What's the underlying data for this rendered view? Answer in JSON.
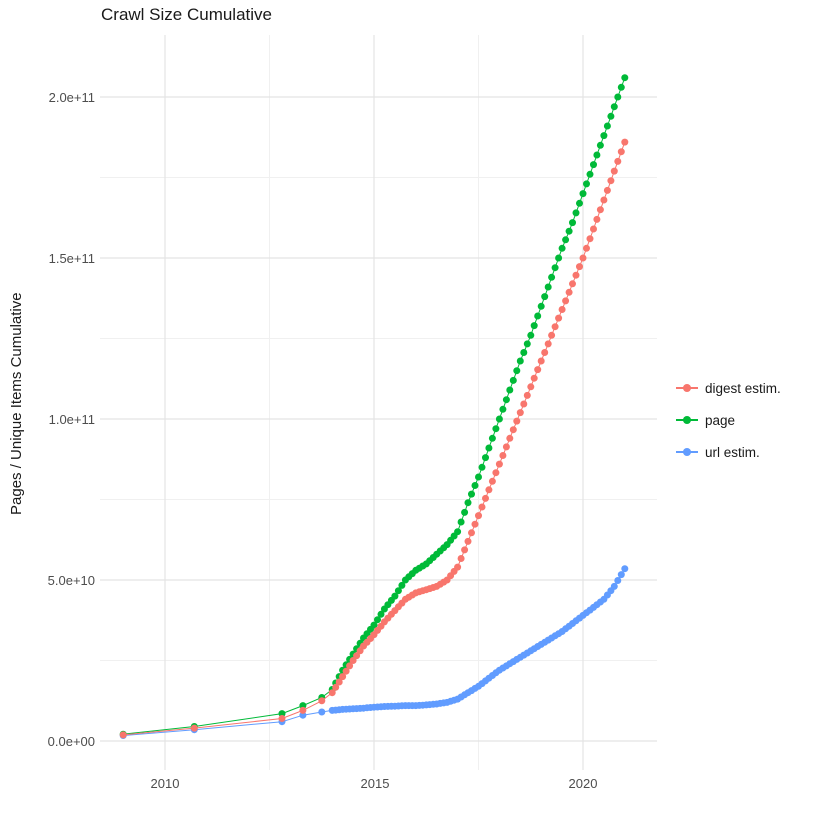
{
  "chart_data": {
    "type": "scatter",
    "title": "Crawl Size Cumulative",
    "xlabel": "",
    "ylabel": "Pages / Unique Items Cumulative",
    "grid": true,
    "legend_position": "right",
    "xlim": [
      2008.45,
      2021.77
    ],
    "ylim": [
      -9000000000.0,
      219000000000.0
    ],
    "x_ticks": {
      "labels": [
        "2010",
        "2015",
        "2020"
      ],
      "values": [
        2010,
        2015,
        2020
      ]
    },
    "y_ticks": {
      "labels": [
        "0.0e+00",
        "5.0e+10",
        "1.0e+11",
        "1.5e+11",
        "2.0e+11"
      ],
      "values": [
        0,
        50000000000.0,
        100000000000.0,
        150000000000.0,
        200000000000.0
      ]
    },
    "x_minor": [
      2012.5,
      2017.5
    ],
    "y_minor": [
      25000000000.0,
      75000000000.0,
      125000000000.0,
      175000000000.0
    ],
    "series": [
      {
        "name": "digest estim.",
        "color": "#F8766D",
        "points": [
          [
            2009.0,
            1900000000.0
          ],
          [
            2010.7,
            4000000000.0
          ],
          [
            2012.8,
            7000000000.0
          ],
          [
            2013.3,
            9500000000.0
          ],
          [
            2013.75,
            12500000000.0
          ],
          [
            2014.0,
            15000000000.0
          ],
          [
            2014.25,
            20000000000.0
          ],
          [
            2014.5,
            25000000000.0
          ],
          [
            2014.75,
            29500000000.0
          ],
          [
            2015.0,
            33000000000.0
          ],
          [
            2015.25,
            37000000000.0
          ],
          [
            2015.5,
            40500000000.0
          ],
          [
            2015.75,
            44000000000.0
          ],
          [
            2016.0,
            46000000000.0
          ],
          [
            2016.25,
            47000000000.0
          ],
          [
            2016.5,
            48000000000.0
          ],
          [
            2016.75,
            50000000000.0
          ],
          [
            2017.0,
            54000000000.0
          ],
          [
            2017.25,
            62000000000.0
          ],
          [
            2017.5,
            70000000000.0
          ],
          [
            2017.75,
            78000000000.0
          ],
          [
            2018.0,
            86000000000.0
          ],
          [
            2018.25,
            94000000000.0
          ],
          [
            2018.5,
            102000000000.0
          ],
          [
            2018.75,
            110000000000.0
          ],
          [
            2019.0,
            118000000000.0
          ],
          [
            2019.25,
            126000000000.0
          ],
          [
            2019.5,
            134000000000.0
          ],
          [
            2019.75,
            142000000000.0
          ],
          [
            2020.0,
            150000000000.0
          ],
          [
            2020.25,
            159000000000.0
          ],
          [
            2020.5,
            168000000000.0
          ],
          [
            2020.75,
            177000000000.0
          ],
          [
            2021.0,
            186000000000.0
          ]
        ]
      },
      {
        "name": "page",
        "color": "#00BA38",
        "points": [
          [
            2009.0,
            2100000000.0
          ],
          [
            2010.7,
            4500000000.0
          ],
          [
            2012.8,
            8500000000.0
          ],
          [
            2013.3,
            11000000000.0
          ],
          [
            2013.75,
            13500000000.0
          ],
          [
            2014.0,
            16000000000.0
          ],
          [
            2014.25,
            22000000000.0
          ],
          [
            2014.5,
            27000000000.0
          ],
          [
            2014.75,
            32000000000.0
          ],
          [
            2015.0,
            36000000000.0
          ],
          [
            2015.25,
            41000000000.0
          ],
          [
            2015.5,
            45000000000.0
          ],
          [
            2015.75,
            50000000000.0
          ],
          [
            2016.0,
            53000000000.0
          ],
          [
            2016.25,
            55000000000.0
          ],
          [
            2016.5,
            58000000000.0
          ],
          [
            2016.75,
            61000000000.0
          ],
          [
            2017.0,
            65000000000.0
          ],
          [
            2017.25,
            74000000000.0
          ],
          [
            2017.5,
            82000000000.0
          ],
          [
            2017.75,
            91000000000.0
          ],
          [
            2018.0,
            100000000000.0
          ],
          [
            2018.25,
            109000000000.0
          ],
          [
            2018.5,
            118000000000.0
          ],
          [
            2018.75,
            126000000000.0
          ],
          [
            2019.0,
            135000000000.0
          ],
          [
            2019.25,
            144000000000.0
          ],
          [
            2019.5,
            153000000000.0
          ],
          [
            2019.75,
            161000000000.0
          ],
          [
            2020.0,
            170000000000.0
          ],
          [
            2020.25,
            179000000000.0
          ],
          [
            2020.5,
            188000000000.0
          ],
          [
            2020.75,
            197000000000.0
          ],
          [
            2021.0,
            206000000000.0
          ]
        ]
      },
      {
        "name": "url estim.",
        "color": "#619CFF",
        "points": [
          [
            2009.0,
            1700000000.0
          ],
          [
            2010.7,
            3500000000.0
          ],
          [
            2012.8,
            6000000000.0
          ],
          [
            2013.3,
            8000000000.0
          ],
          [
            2013.75,
            9000000000.0
          ],
          [
            2014.0,
            9500000000.0
          ],
          [
            2014.25,
            9800000000.0
          ],
          [
            2014.5,
            10000000000.0
          ],
          [
            2014.75,
            10200000000.0
          ],
          [
            2015.0,
            10500000000.0
          ],
          [
            2015.25,
            10700000000.0
          ],
          [
            2015.5,
            10800000000.0
          ],
          [
            2015.75,
            11000000000.0
          ],
          [
            2016.0,
            11000000000.0
          ],
          [
            2016.25,
            11200000000.0
          ],
          [
            2016.5,
            11500000000.0
          ],
          [
            2016.75,
            12000000000.0
          ],
          [
            2017.0,
            13000000000.0
          ],
          [
            2017.25,
            15000000000.0
          ],
          [
            2017.5,
            17000000000.0
          ],
          [
            2017.75,
            19500000000.0
          ],
          [
            2018.0,
            22000000000.0
          ],
          [
            2018.25,
            24000000000.0
          ],
          [
            2018.5,
            26000000000.0
          ],
          [
            2018.75,
            28000000000.0
          ],
          [
            2019.0,
            30000000000.0
          ],
          [
            2019.25,
            32000000000.0
          ],
          [
            2019.5,
            34000000000.0
          ],
          [
            2019.75,
            36500000000.0
          ],
          [
            2020.0,
            39000000000.0
          ],
          [
            2020.25,
            41500000000.0
          ],
          [
            2020.5,
            44000000000.0
          ],
          [
            2020.75,
            48000000000.0
          ],
          [
            2021.0,
            53500000000.0
          ]
        ]
      }
    ]
  }
}
